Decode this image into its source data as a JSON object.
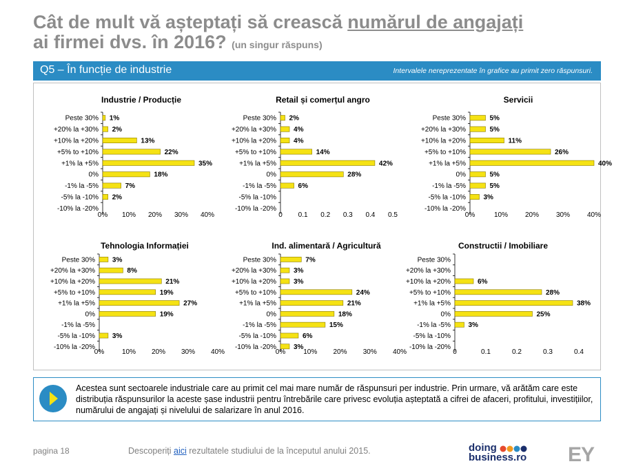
{
  "header": {
    "title_part1": "Cât de mult vă așteptați să crească ",
    "title_underlined": "numărul de angajați",
    "title_line2": "ai firmei dvs. în 2016?",
    "title_note": "(un singur răspuns)"
  },
  "banner": {
    "label": "Q5 – În funcție de industrie",
    "note": "Intervalele nereprezentate în grafice au primit zero răspunsuri."
  },
  "colors": {
    "bar": "#f5e214",
    "bar_stroke": "#8a7a00",
    "accent": "#2b8cc4"
  },
  "chart_data": [
    {
      "type": "bar",
      "orientation": "horizontal",
      "title": "Industrie / Producție",
      "categories": [
        "Peste 30%",
        "+20% la +30%",
        "+10% la +20%",
        "+5% to +10%",
        "+1% la +5%",
        "0%",
        "-1% la -5%",
        "-5% la -10%",
        "-10% la -20%"
      ],
      "values": [
        1,
        2,
        13,
        22,
        35,
        18,
        7,
        2,
        null
      ],
      "labels": [
        "1%",
        "2%",
        "13%",
        "22%",
        "35%",
        "18%",
        "7%",
        "2%",
        ""
      ],
      "xlim": [
        0,
        40
      ],
      "ticks": [
        0,
        10,
        20,
        30,
        40
      ],
      "tick_labels": [
        "0%",
        "10%",
        "20%",
        "30%",
        "40%"
      ]
    },
    {
      "type": "bar",
      "orientation": "horizontal",
      "title": "Retail și comerțul angro",
      "categories": [
        "Peste 30%",
        "+20% la +30%",
        "+10% la +20%",
        "+5% to +10%",
        "+1% la +5%",
        "0%",
        "-1% la -5%",
        "-5% la -10%",
        "-10% la -20%"
      ],
      "values": [
        2,
        4,
        4,
        14,
        42,
        28,
        6,
        null,
        null
      ],
      "labels": [
        "2%",
        "4%",
        "4%",
        "14%",
        "42%",
        "28%",
        "6%",
        "",
        ""
      ],
      "xlim": [
        0,
        50
      ],
      "ticks": [
        0,
        10,
        20,
        30,
        40,
        50
      ],
      "tick_labels": [
        "0",
        "0.1",
        "0.2",
        "0.3",
        "0.4",
        "0.5"
      ]
    },
    {
      "type": "bar",
      "orientation": "horizontal",
      "title": "Servicii",
      "categories": [
        "Peste 30%",
        "+20% la +30%",
        "+10% la +20%",
        "+5% to +10%",
        "+1% la +5%",
        "0%",
        "-1% la -5%",
        "-5% la -10%",
        "-10% la -20%"
      ],
      "values": [
        5,
        5,
        11,
        26,
        40,
        5,
        5,
        3,
        null
      ],
      "labels": [
        "5%",
        "5%",
        "11%",
        "26%",
        "40%",
        "5%",
        "5%",
        "3%",
        ""
      ],
      "xlim": [
        0,
        40
      ],
      "ticks": [
        0,
        10,
        20,
        30,
        40
      ],
      "tick_labels": [
        "0%",
        "10%",
        "20%",
        "30%",
        "40%"
      ]
    },
    {
      "type": "bar",
      "orientation": "horizontal",
      "title": "Tehnologia Informației",
      "categories": [
        "Peste 30%",
        "+20% la +30%",
        "+10% la +20%",
        "+5% to +10%",
        "+1% la +5%",
        "0%",
        "-1% la -5%",
        "-5% la -10%",
        "-10% la -20%"
      ],
      "values": [
        3,
        8,
        21,
        19,
        27,
        19,
        null,
        3,
        null
      ],
      "labels": [
        "3%",
        "8%",
        "21%",
        "19%",
        "27%",
        "19%",
        "",
        "3%",
        ""
      ],
      "xlim": [
        0,
        40
      ],
      "ticks": [
        0,
        10,
        20,
        30,
        40
      ],
      "tick_labels": [
        "0%",
        "10%",
        "20%",
        "30%",
        "40%"
      ]
    },
    {
      "type": "bar",
      "orientation": "horizontal",
      "title": "Ind. alimentară / Agricultură",
      "categories": [
        "Peste 30%",
        "+20% la +30%",
        "+10% la +20%",
        "+5% to +10%",
        "+1% la +5%",
        "0%",
        "-1% la -5%",
        "-5% la -10%",
        "-10% la -20%"
      ],
      "values": [
        7,
        3,
        3,
        24,
        21,
        18,
        15,
        6,
        3
      ],
      "labels": [
        "7%",
        "3%",
        "3%",
        "24%",
        "21%",
        "18%",
        "15%",
        "6%",
        "3%"
      ],
      "xlim": [
        0,
        40
      ],
      "ticks": [
        0,
        10,
        20,
        30,
        40
      ],
      "tick_labels": [
        "0%",
        "10%",
        "20%",
        "30%",
        "40%"
      ]
    },
    {
      "type": "bar",
      "orientation": "horizontal",
      "title": "Constructii / Imobiliare",
      "categories": [
        "Peste 30%",
        "+20% la +30%",
        "+10% la +20%",
        "+5% to +10%",
        "+1% la +5%",
        "0%",
        "-1% la -5%",
        "-5% la -10%",
        "-10% la -20%"
      ],
      "values": [
        null,
        null,
        6,
        28,
        38,
        25,
        3,
        null,
        null
      ],
      "labels": [
        "",
        "",
        "6%",
        "28%",
        "38%",
        "25%",
        "3%",
        "",
        ""
      ],
      "xlim": [
        0,
        40
      ],
      "ticks": [
        0,
        10,
        20,
        30,
        40
      ],
      "tick_labels": [
        "0",
        "0.1",
        "0.2",
        "0.3",
        "0.4"
      ]
    }
  ],
  "note": {
    "text": "Acestea sunt sectoarele industriale care au primit cel mai mare număr de răspunsuri per industrie. Prin urmare, vă arătăm care este distribuția răspunsurilor la aceste șase industrii pentru întrebările care privesc evoluția așteptată a cifrei de afaceri, profitului, investițiilor, numărului de angajați și nivelului de salarizare în anul 2016."
  },
  "footer": {
    "page": "pagina 18",
    "text_before": "Descoperiți ",
    "link": "aici",
    "text_after": " rezultatele studiului de la începutul anului 2015.",
    "logo_line1": "doing",
    "logo_line2": "business.ro",
    "brand": "EY"
  }
}
